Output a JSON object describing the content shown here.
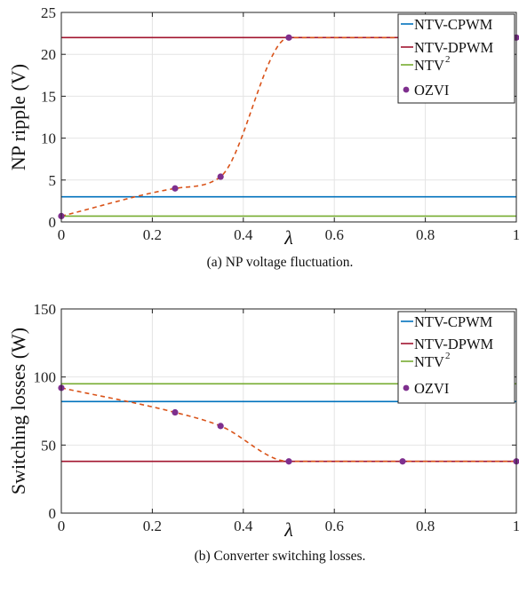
{
  "chart_data": [
    {
      "type": "line",
      "caption": "(a)  NP voltage fluctuation.",
      "xlabel": "λ",
      "ylabel": "NP ripple (V)",
      "xlim": [
        0,
        1
      ],
      "ylim": [
        0,
        25
      ],
      "xticks": [
        0,
        0.2,
        0.4,
        0.6,
        0.8,
        1
      ],
      "xtick_labels": [
        "0",
        "0.2",
        "0.4",
        "0.6",
        "0.8",
        "1"
      ],
      "yticks": [
        0,
        5,
        10,
        15,
        20,
        25
      ],
      "ytick_labels": [
        "0",
        "5",
        "10",
        "15",
        "20",
        "25"
      ],
      "grid": true,
      "legend_position": "top-right",
      "series": [
        {
          "name": "NTV-CPWM",
          "color": "#0072BD",
          "style": "solid",
          "x": [
            0,
            1
          ],
          "values": [
            3.0,
            3.0
          ]
        },
        {
          "name": "NTV-DPWM",
          "color": "#A2142F",
          "style": "solid",
          "x": [
            0,
            1
          ],
          "values": [
            22.0,
            22.0
          ]
        },
        {
          "name": "NTV",
          "name_sup": "2",
          "color": "#77AC30",
          "style": "solid",
          "x": [
            0,
            1
          ],
          "values": [
            0.7,
            0.7
          ]
        },
        {
          "name": "OZVI",
          "color": "#7E2F8E",
          "style": "markers",
          "x": [
            0,
            0.25,
            0.35,
            0.5,
            1
          ],
          "values": [
            0.7,
            4.0,
            5.4,
            22.0,
            22.0
          ]
        }
      ],
      "fit": {
        "color": "#D95319",
        "style": "dashed",
        "x": [
          0,
          0.25,
          0.35,
          0.5,
          1
        ],
        "values": [
          0.7,
          4.0,
          5.4,
          22.0,
          22.0
        ]
      }
    },
    {
      "type": "line",
      "caption": "(b)  Converter switching losses.",
      "xlabel": "λ",
      "ylabel": "Switching losses (W)",
      "xlim": [
        0,
        1
      ],
      "ylim": [
        0,
        150
      ],
      "xticks": [
        0,
        0.2,
        0.4,
        0.6,
        0.8,
        1
      ],
      "xtick_labels": [
        "0",
        "0.2",
        "0.4",
        "0.6",
        "0.8",
        "1"
      ],
      "yticks": [
        0,
        50,
        100,
        150
      ],
      "ytick_labels": [
        "0",
        "50",
        "100",
        "150"
      ],
      "grid": true,
      "legend_position": "top-right",
      "series": [
        {
          "name": "NTV-CPWM",
          "color": "#0072BD",
          "style": "solid",
          "x": [
            0,
            1
          ],
          "values": [
            82,
            82
          ]
        },
        {
          "name": "NTV-DPWM",
          "color": "#A2142F",
          "style": "solid",
          "x": [
            0,
            1
          ],
          "values": [
            38,
            38
          ]
        },
        {
          "name": "NTV",
          "name_sup": "2",
          "color": "#77AC30",
          "style": "solid",
          "x": [
            0,
            1
          ],
          "values": [
            95,
            95
          ]
        },
        {
          "name": "OZVI",
          "color": "#7E2F8E",
          "style": "markers",
          "x": [
            0,
            0.25,
            0.35,
            0.5,
            0.75,
            1
          ],
          "values": [
            92,
            74,
            64,
            38,
            38,
            38
          ]
        }
      ],
      "fit": {
        "color": "#D95319",
        "style": "dashed",
        "x": [
          0,
          0.25,
          0.35,
          0.5,
          0.75,
          1
        ],
        "values": [
          92,
          74,
          64,
          38,
          38,
          38
        ]
      }
    }
  ]
}
